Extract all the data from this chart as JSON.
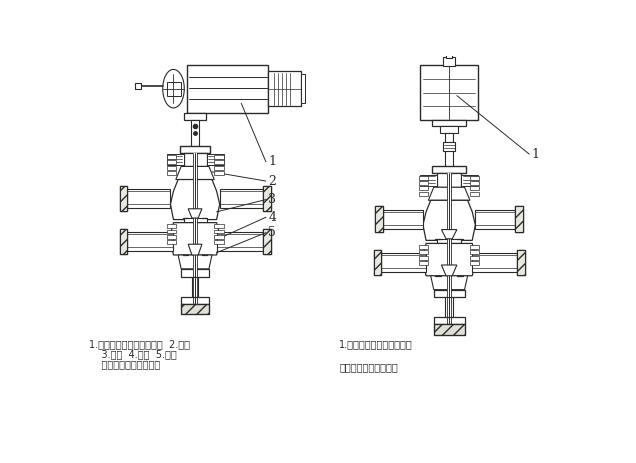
{
  "bg_color": "#ffffff",
  "line_color": "#2a2a2a",
  "title_left_line1": "1.电动执行机构（普通型）  2.阀盖",
  "title_left_line2": "    3.阀芯  4.阀座  5.阀体",
  "title_left_line3": "    普通型电动双座调节阀",
  "title_right_line1": "1.电动执行机构（电子型）",
  "title_right_line3": "电子型电动双座调节阀",
  "figsize": [
    6.36,
    4.63
  ],
  "dpi": 100
}
